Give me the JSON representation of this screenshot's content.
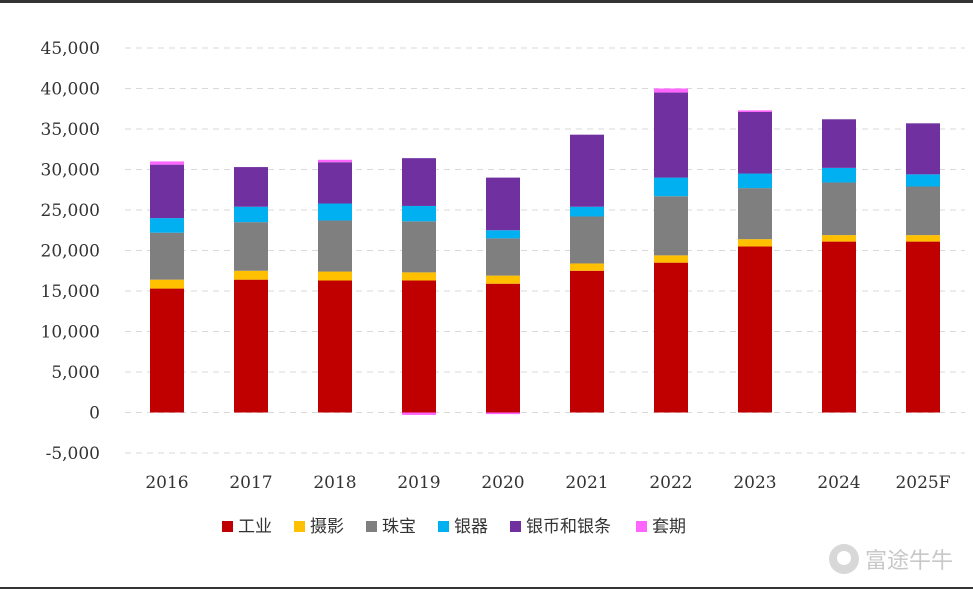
{
  "chart_data": {
    "type": "bar",
    "stacked": true,
    "categories": [
      "2016",
      "2017",
      "2018",
      "2019",
      "2020",
      "2021",
      "2022",
      "2023",
      "2024",
      "2025F"
    ],
    "ylim": [
      -5000,
      45000
    ],
    "yticks": [
      -5000,
      0,
      5000,
      10000,
      15000,
      20000,
      25000,
      30000,
      35000,
      40000,
      45000
    ],
    "ytick_labels": [
      "-5,000",
      "0",
      "5,000",
      "10,000",
      "15,000",
      "20,000",
      "25,000",
      "30,000",
      "35,000",
      "40,000",
      "45,000"
    ],
    "grid": true,
    "legend_position": "bottom",
    "series": [
      {
        "name": "工业",
        "color": "#C00000",
        "values": [
          15300,
          16400,
          16300,
          16300,
          15900,
          17500,
          18500,
          20500,
          21100,
          21100
        ]
      },
      {
        "name": "摄影",
        "color": "#FFC000",
        "values": [
          1100,
          1100,
          1100,
          1000,
          1000,
          900,
          900,
          900,
          800,
          800
        ]
      },
      {
        "name": "珠宝",
        "color": "#7F7F7F",
        "values": [
          5800,
          6000,
          6300,
          6300,
          4600,
          5800,
          7300,
          6300,
          6500,
          6000
        ]
      },
      {
        "name": "银器",
        "color": "#00B0F0",
        "values": [
          1800,
          1900,
          2100,
          1900,
          1000,
          1200,
          2300,
          1800,
          1800,
          1500
        ]
      },
      {
        "name": "银币和银条",
        "color": "#7030A0",
        "values": [
          6600,
          4900,
          5100,
          5900,
          6500,
          8900,
          10500,
          7600,
          6000,
          6300
        ]
      },
      {
        "name": "套期",
        "color": "#FF66FF",
        "values": [
          400,
          0,
          300,
          -300,
          -200,
          0,
          500,
          200,
          0,
          0
        ]
      }
    ]
  },
  "watermark": {
    "text": "富途牛牛"
  }
}
